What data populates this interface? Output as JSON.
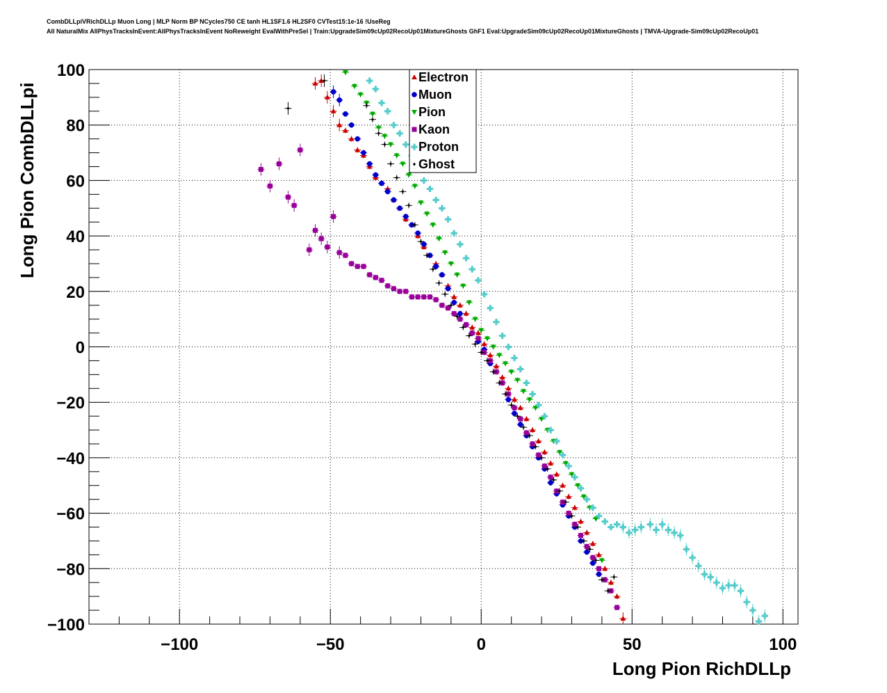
{
  "header": {
    "line1": "CombDLLpiVRichDLLp Muon Long | MLP Norm BP NCycles750 CE tanh HL1SF1.6 HL2SF0 CVTest15:1e-16 !UseReg",
    "line2": "All NaturalMix AllPhysTracksInEvent:AllPhysTracksInEvent NoReweight EvalWithPreSel | Train:UpgradeSim09cUp02RecoUp01MixtureGhosts GhF1 Eval:UpgradeSim09cUp02RecoUp01MixtureGhosts | TMVA-Upgrade-Sim09cUp02RecoUp01"
  },
  "chart_data": {
    "type": "scatter",
    "title": "",
    "xlabel": "Long Pion RichDLLp",
    "ylabel": "Long Pion CombDLLpi",
    "xlim": [
      -130,
      105
    ],
    "ylim": [
      -100,
      100
    ],
    "x_ticks": [
      -100,
      -50,
      0,
      50,
      100
    ],
    "x_tick_labels": [
      "−100",
      "−50",
      "0",
      "50",
      "100"
    ],
    "y_ticks": [
      -100,
      -80,
      -60,
      -40,
      -20,
      0,
      20,
      40,
      60,
      80,
      100
    ],
    "y_tick_labels": [
      "−100",
      "−80",
      "−60",
      "−40",
      "−20",
      "0",
      "20",
      "40",
      "60",
      "80",
      "100"
    ],
    "grid": true,
    "legend_position": "top-center",
    "series": [
      {
        "name": "Electron",
        "color": "#cc0000",
        "marker": "triangle-up",
        "points": [
          [
            -55,
            95
          ],
          [
            -53,
            96
          ],
          [
            -51,
            90
          ],
          [
            -49,
            85
          ],
          [
            -47,
            80
          ],
          [
            -45,
            78
          ],
          [
            -43,
            75
          ],
          [
            -41,
            71
          ],
          [
            -39,
            69
          ],
          [
            -37,
            65
          ],
          [
            -35,
            61
          ],
          [
            -33,
            59
          ],
          [
            -31,
            57
          ],
          [
            -29,
            53
          ],
          [
            -27,
            50
          ],
          [
            -25,
            46
          ],
          [
            -23,
            44
          ],
          [
            -21,
            40
          ],
          [
            -19,
            36
          ],
          [
            -17,
            33
          ],
          [
            -15,
            30
          ],
          [
            -13,
            26
          ],
          [
            -11,
            22
          ],
          [
            -9,
            18
          ],
          [
            -7,
            15
          ],
          [
            -5,
            12
          ],
          [
            -3,
            7
          ],
          [
            -1,
            5
          ],
          [
            1,
            1
          ],
          [
            3,
            -3
          ],
          [
            5,
            -7
          ],
          [
            7,
            -11
          ],
          [
            9,
            -15
          ],
          [
            11,
            -19
          ],
          [
            13,
            -22
          ],
          [
            15,
            -26
          ],
          [
            17,
            -30
          ],
          [
            19,
            -34
          ],
          [
            21,
            -38
          ],
          [
            23,
            -42
          ],
          [
            25,
            -46
          ],
          [
            27,
            -50
          ],
          [
            29,
            -54
          ],
          [
            31,
            -58
          ],
          [
            33,
            -63
          ],
          [
            35,
            -67
          ],
          [
            37,
            -71
          ],
          [
            39,
            -75
          ],
          [
            41,
            -80
          ],
          [
            43,
            -85
          ],
          [
            45,
            -90
          ],
          [
            47,
            -98
          ]
        ]
      },
      {
        "name": "Muon",
        "color": "#0000cc",
        "marker": "circle",
        "points": [
          [
            -49,
            92
          ],
          [
            -47,
            89
          ],
          [
            -45,
            84
          ],
          [
            -43,
            80
          ],
          [
            -41,
            75
          ],
          [
            -39,
            70
          ],
          [
            -37,
            66
          ],
          [
            -35,
            62
          ],
          [
            -33,
            59
          ],
          [
            -31,
            56
          ],
          [
            -29,
            53
          ],
          [
            -27,
            50
          ],
          [
            -25,
            47
          ],
          [
            -23,
            44
          ],
          [
            -21,
            41
          ],
          [
            -19,
            37
          ],
          [
            -17,
            33
          ],
          [
            -15,
            29
          ],
          [
            -13,
            26
          ],
          [
            -11,
            21
          ],
          [
            -9,
            16
          ],
          [
            -7,
            12
          ],
          [
            -5,
            8
          ],
          [
            -3,
            5
          ],
          [
            -1,
            2
          ],
          [
            1,
            -1
          ],
          [
            3,
            -6
          ],
          [
            5,
            -9
          ],
          [
            7,
            -13
          ],
          [
            9,
            -19
          ],
          [
            11,
            -24
          ],
          [
            13,
            -28
          ],
          [
            15,
            -32
          ],
          [
            17,
            -36
          ],
          [
            19,
            -40
          ],
          [
            21,
            -44
          ],
          [
            23,
            -49
          ],
          [
            25,
            -53
          ],
          [
            27,
            -57
          ],
          [
            29,
            -61
          ],
          [
            31,
            -65
          ],
          [
            33,
            -70
          ],
          [
            35,
            -74
          ],
          [
            37,
            -78
          ],
          [
            39,
            -82
          ],
          [
            41,
            -84
          ]
        ]
      },
      {
        "name": "Pion",
        "color": "#00aa00",
        "marker": "triangle-down",
        "points": [
          [
            -45,
            99
          ],
          [
            -42,
            94
          ],
          [
            -40,
            91
          ],
          [
            -38,
            88
          ],
          [
            -36,
            84
          ],
          [
            -34,
            79
          ],
          [
            -32,
            76
          ],
          [
            -30,
            73
          ],
          [
            -28,
            69
          ],
          [
            -26,
            66
          ],
          [
            -24,
            62
          ],
          [
            -22,
            58
          ],
          [
            -20,
            52
          ],
          [
            -18,
            48
          ],
          [
            -16,
            44
          ],
          [
            -14,
            39
          ],
          [
            -12,
            34
          ],
          [
            -10,
            30
          ],
          [
            -8,
            26
          ],
          [
            -6,
            22
          ],
          [
            -4,
            16
          ],
          [
            -2,
            10
          ],
          [
            0,
            6
          ],
          [
            2,
            3
          ],
          [
            4,
            0
          ],
          [
            6,
            -3
          ],
          [
            8,
            -6
          ],
          [
            10,
            -9
          ],
          [
            12,
            -12
          ],
          [
            14,
            -16
          ],
          [
            16,
            -19
          ],
          [
            18,
            -22
          ],
          [
            20,
            -26
          ],
          [
            22,
            -30
          ],
          [
            24,
            -34
          ],
          [
            26,
            -38
          ],
          [
            28,
            -42
          ],
          [
            30,
            -46
          ],
          [
            32,
            -50
          ],
          [
            34,
            -54
          ],
          [
            36,
            -58
          ],
          [
            38,
            -62
          ],
          [
            40,
            -77
          ]
        ]
      },
      {
        "name": "Kaon",
        "color": "#990099",
        "marker": "square",
        "points": [
          [
            -73,
            64
          ],
          [
            -70,
            58
          ],
          [
            -67,
            66
          ],
          [
            -64,
            54
          ],
          [
            -62,
            51
          ],
          [
            -60,
            71
          ],
          [
            -57,
            35
          ],
          [
            -55,
            42
          ],
          [
            -53,
            39
          ],
          [
            -51,
            36
          ],
          [
            -49,
            47
          ],
          [
            -47,
            34
          ],
          [
            -45,
            33
          ],
          [
            -43,
            30
          ],
          [
            -41,
            29
          ],
          [
            -39,
            29
          ],
          [
            -37,
            26
          ],
          [
            -35,
            25
          ],
          [
            -33,
            24
          ],
          [
            -31,
            22
          ],
          [
            -29,
            21
          ],
          [
            -27,
            20
          ],
          [
            -25,
            20
          ],
          [
            -23,
            18
          ],
          [
            -21,
            18
          ],
          [
            -19,
            18
          ],
          [
            -17,
            18
          ],
          [
            -15,
            17
          ],
          [
            -13,
            15
          ],
          [
            -11,
            14
          ],
          [
            -9,
            12
          ],
          [
            -7,
            10
          ],
          [
            -5,
            8
          ],
          [
            -3,
            5
          ],
          [
            -1,
            3
          ],
          [
            1,
            -2
          ],
          [
            3,
            -5
          ],
          [
            5,
            -9
          ],
          [
            7,
            -13
          ],
          [
            9,
            -17
          ],
          [
            11,
            -22
          ],
          [
            13,
            -26
          ],
          [
            15,
            -31
          ],
          [
            17,
            -35
          ],
          [
            19,
            -39
          ],
          [
            21,
            -43
          ],
          [
            23,
            -47
          ],
          [
            25,
            -52
          ],
          [
            27,
            -56
          ],
          [
            29,
            -60
          ],
          [
            31,
            -64
          ],
          [
            33,
            -68
          ],
          [
            35,
            -72
          ],
          [
            37,
            -76
          ],
          [
            39,
            -80
          ],
          [
            41,
            -84
          ],
          [
            43,
            -88
          ],
          [
            45,
            -94
          ]
        ]
      },
      {
        "name": "Proton",
        "color": "#55cccc",
        "marker": "cross",
        "points": [
          [
            -37,
            96
          ],
          [
            -35,
            93
          ],
          [
            -33,
            88
          ],
          [
            -31,
            85
          ],
          [
            -29,
            80
          ],
          [
            -27,
            77
          ],
          [
            -25,
            73
          ],
          [
            -23,
            69
          ],
          [
            -21,
            64
          ],
          [
            -19,
            60
          ],
          [
            -17,
            57
          ],
          [
            -15,
            53
          ],
          [
            -13,
            50
          ],
          [
            -11,
            46
          ],
          [
            -9,
            41
          ],
          [
            -7,
            37
          ],
          [
            -5,
            32
          ],
          [
            -3,
            28
          ],
          [
            -1,
            24
          ],
          [
            1,
            19
          ],
          [
            3,
            14
          ],
          [
            5,
            9
          ],
          [
            7,
            4
          ],
          [
            9,
            0
          ],
          [
            11,
            -4
          ],
          [
            13,
            -8
          ],
          [
            15,
            -13
          ],
          [
            17,
            -17
          ],
          [
            19,
            -21
          ],
          [
            21,
            -25
          ],
          [
            23,
            -30
          ],
          [
            25,
            -34
          ],
          [
            27,
            -39
          ],
          [
            29,
            -43
          ],
          [
            31,
            -47
          ],
          [
            33,
            -51
          ],
          [
            35,
            -55
          ],
          [
            37,
            -58
          ],
          [
            39,
            -61
          ],
          [
            41,
            -63
          ],
          [
            43,
            -65
          ],
          [
            45,
            -64
          ],
          [
            47,
            -65
          ],
          [
            49,
            -67
          ],
          [
            51,
            -66
          ],
          [
            53,
            -65
          ],
          [
            56,
            -64
          ],
          [
            58,
            -66
          ],
          [
            60,
            -64
          ],
          [
            62,
            -66
          ],
          [
            64,
            -67
          ],
          [
            66,
            -68
          ],
          [
            68,
            -73
          ],
          [
            70,
            -76
          ],
          [
            72,
            -79
          ],
          [
            74,
            -82
          ],
          [
            76,
            -83
          ],
          [
            78,
            -85
          ],
          [
            80,
            -87
          ],
          [
            82,
            -86
          ],
          [
            84,
            -86
          ],
          [
            86,
            -88
          ],
          [
            88,
            -92
          ],
          [
            90,
            -95
          ],
          [
            92,
            -99
          ],
          [
            94,
            -97
          ]
        ]
      },
      {
        "name": "Ghost",
        "color": "#000000",
        "marker": "small-diamond",
        "points": [
          [
            -64,
            86
          ],
          [
            -52,
            96
          ],
          [
            -38,
            87
          ],
          [
            -36,
            82
          ],
          [
            -34,
            77
          ],
          [
            -32,
            73
          ],
          [
            -30,
            66
          ],
          [
            -28,
            61
          ],
          [
            -26,
            56
          ],
          [
            -24,
            51
          ],
          [
            -22,
            44
          ],
          [
            -20,
            38
          ],
          [
            -18,
            33
          ],
          [
            -16,
            28
          ],
          [
            -14,
            23
          ],
          [
            -12,
            19
          ],
          [
            -10,
            15
          ],
          [
            -8,
            11
          ],
          [
            -6,
            7
          ],
          [
            -4,
            4
          ],
          [
            -2,
            1
          ],
          [
            0,
            -2
          ],
          [
            2,
            -5
          ],
          [
            4,
            -9
          ],
          [
            6,
            -13
          ],
          [
            8,
            -17
          ],
          [
            10,
            -21
          ],
          [
            12,
            -25
          ],
          [
            14,
            -29
          ],
          [
            16,
            -32
          ],
          [
            18,
            -36
          ],
          [
            20,
            -40
          ],
          [
            22,
            -44
          ],
          [
            24,
            -48
          ],
          [
            26,
            -52
          ],
          [
            28,
            -56
          ],
          [
            30,
            -61
          ],
          [
            32,
            -65
          ],
          [
            34,
            -70
          ],
          [
            36,
            -73
          ],
          [
            38,
            -77
          ],
          [
            40,
            -84
          ],
          [
            42,
            -88
          ],
          [
            44,
            -83
          ]
        ]
      }
    ]
  }
}
